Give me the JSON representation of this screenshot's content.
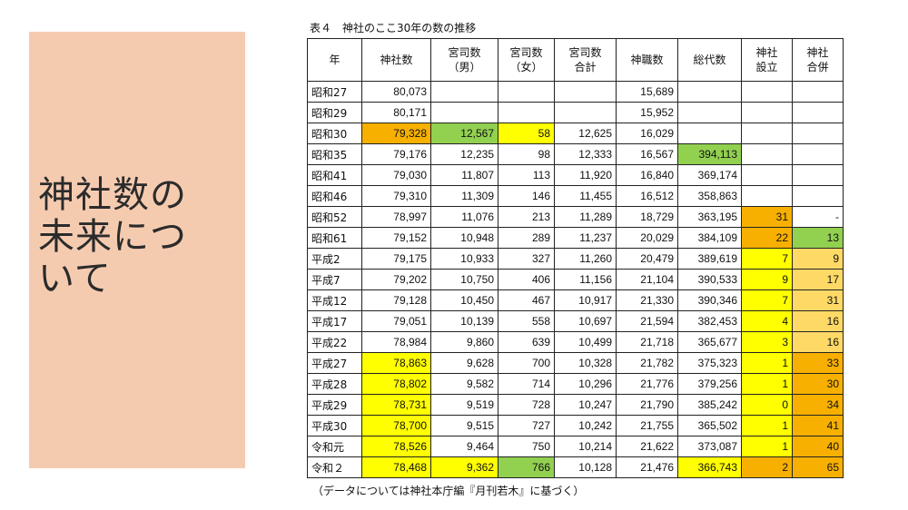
{
  "slide": {
    "title": "神社数の\n未来につ\nいて",
    "table_caption": "表４　神社のここ30年の数の推移",
    "footnote": "（データについては神社本庁編『月刊若木』に基づく）"
  },
  "colors": {
    "panel": "#f5cbb0",
    "yellow": "#ffff00",
    "orange": "#f7b000",
    "light_orange": "#ffd966",
    "green": "#92d050"
  },
  "table": {
    "headers": [
      "年",
      "神社数",
      "宮司数\n（男）",
      "宮司数\n（女）",
      "宮司数\n合計",
      "神職数",
      "総代数",
      "神社\n設立",
      "神社\n合併"
    ],
    "rows": [
      [
        "昭和27",
        "80,073",
        "",
        "",
        "",
        "15,689",
        "",
        "",
        ""
      ],
      [
        "昭和29",
        "80,171",
        "",
        "",
        "",
        "15,952",
        "",
        "",
        ""
      ],
      [
        "昭和30",
        "79,328",
        "12,567",
        "58",
        "12,625",
        "16,029",
        "",
        "",
        ""
      ],
      [
        "昭和35",
        "79,176",
        "12,235",
        "98",
        "12,333",
        "16,567",
        "394,113",
        "",
        ""
      ],
      [
        "昭和41",
        "79,030",
        "11,807",
        "113",
        "11,920",
        "16,840",
        "369,174",
        "",
        ""
      ],
      [
        "昭和46",
        "79,310",
        "11,309",
        "146",
        "11,455",
        "16,512",
        "358,863",
        "",
        ""
      ],
      [
        "昭和52",
        "78,997",
        "11,076",
        "213",
        "11,289",
        "18,729",
        "363,195",
        "31",
        "-"
      ],
      [
        "昭和61",
        "79,152",
        "10,948",
        "289",
        "11,237",
        "20,029",
        "384,109",
        "22",
        "13"
      ],
      [
        "平成2",
        "79,175",
        "10,933",
        "327",
        "11,260",
        "20,479",
        "389,619",
        "7",
        "9"
      ],
      [
        "平成7",
        "79,202",
        "10,750",
        "406",
        "11,156",
        "21,104",
        "390,533",
        "9",
        "17"
      ],
      [
        "平成12",
        "79,128",
        "10,450",
        "467",
        "10,917",
        "21,330",
        "390,346",
        "7",
        "31"
      ],
      [
        "平成17",
        "79,051",
        "10,139",
        "558",
        "10,697",
        "21,594",
        "382,453",
        "4",
        "16"
      ],
      [
        "平成22",
        "78,984",
        "9,860",
        "639",
        "10,499",
        "21,718",
        "365,677",
        "3",
        "16"
      ],
      [
        "平成27",
        "78,863",
        "9,628",
        "700",
        "10,328",
        "21,782",
        "375,323",
        "1",
        "33"
      ],
      [
        "平成28",
        "78,802",
        "9,582",
        "714",
        "10,296",
        "21,776",
        "379,256",
        "1",
        "30"
      ],
      [
        "平成29",
        "78,731",
        "9,519",
        "728",
        "10,247",
        "21,790",
        "385,242",
        "0",
        "34"
      ],
      [
        "平成30",
        "78,700",
        "9,515",
        "727",
        "10,242",
        "21,755",
        "365,502",
        "1",
        "41"
      ],
      [
        "令和元",
        "78,526",
        "9,464",
        "750",
        "10,214",
        "21,622",
        "373,087",
        "1",
        "40"
      ],
      [
        "令和２",
        "78,468",
        "9,362",
        "766",
        "10,128",
        "21,476",
        "366,743",
        "2",
        "65"
      ]
    ],
    "highlights": [
      [
        null,
        null,
        null,
        null,
        null,
        null,
        null,
        null,
        null
      ],
      [
        null,
        null,
        null,
        null,
        null,
        null,
        null,
        null,
        null
      ],
      [
        null,
        "orange",
        "green",
        "yellow",
        null,
        null,
        null,
        null,
        null
      ],
      [
        null,
        null,
        null,
        null,
        null,
        null,
        "green",
        null,
        null
      ],
      [
        null,
        null,
        null,
        null,
        null,
        null,
        null,
        null,
        null
      ],
      [
        null,
        null,
        null,
        null,
        null,
        null,
        null,
        null,
        null
      ],
      [
        null,
        null,
        null,
        null,
        null,
        null,
        null,
        "orange",
        null
      ],
      [
        null,
        null,
        null,
        null,
        null,
        null,
        null,
        "orange",
        "green"
      ],
      [
        null,
        null,
        null,
        null,
        null,
        null,
        null,
        "yellow",
        "lorange"
      ],
      [
        null,
        null,
        null,
        null,
        null,
        null,
        null,
        "yellow",
        "lorange"
      ],
      [
        null,
        null,
        null,
        null,
        null,
        null,
        null,
        "yellow",
        "lorange"
      ],
      [
        null,
        null,
        null,
        null,
        null,
        null,
        null,
        "yellow",
        "lorange"
      ],
      [
        null,
        null,
        null,
        null,
        null,
        null,
        null,
        "yellow",
        "lorange"
      ],
      [
        null,
        "yellow",
        null,
        null,
        null,
        null,
        null,
        "yellow",
        "orange"
      ],
      [
        null,
        "yellow",
        null,
        null,
        null,
        null,
        null,
        "yellow",
        "orange"
      ],
      [
        null,
        "yellow",
        null,
        null,
        null,
        null,
        null,
        "yellow",
        "orange"
      ],
      [
        null,
        "yellow",
        null,
        null,
        null,
        null,
        null,
        "yellow",
        "orange"
      ],
      [
        null,
        "yellow",
        null,
        null,
        null,
        null,
        null,
        "yellow",
        "orange"
      ],
      [
        null,
        "yellow",
        "yellow",
        "green",
        null,
        null,
        "yellow",
        "orange",
        "orange"
      ]
    ]
  }
}
